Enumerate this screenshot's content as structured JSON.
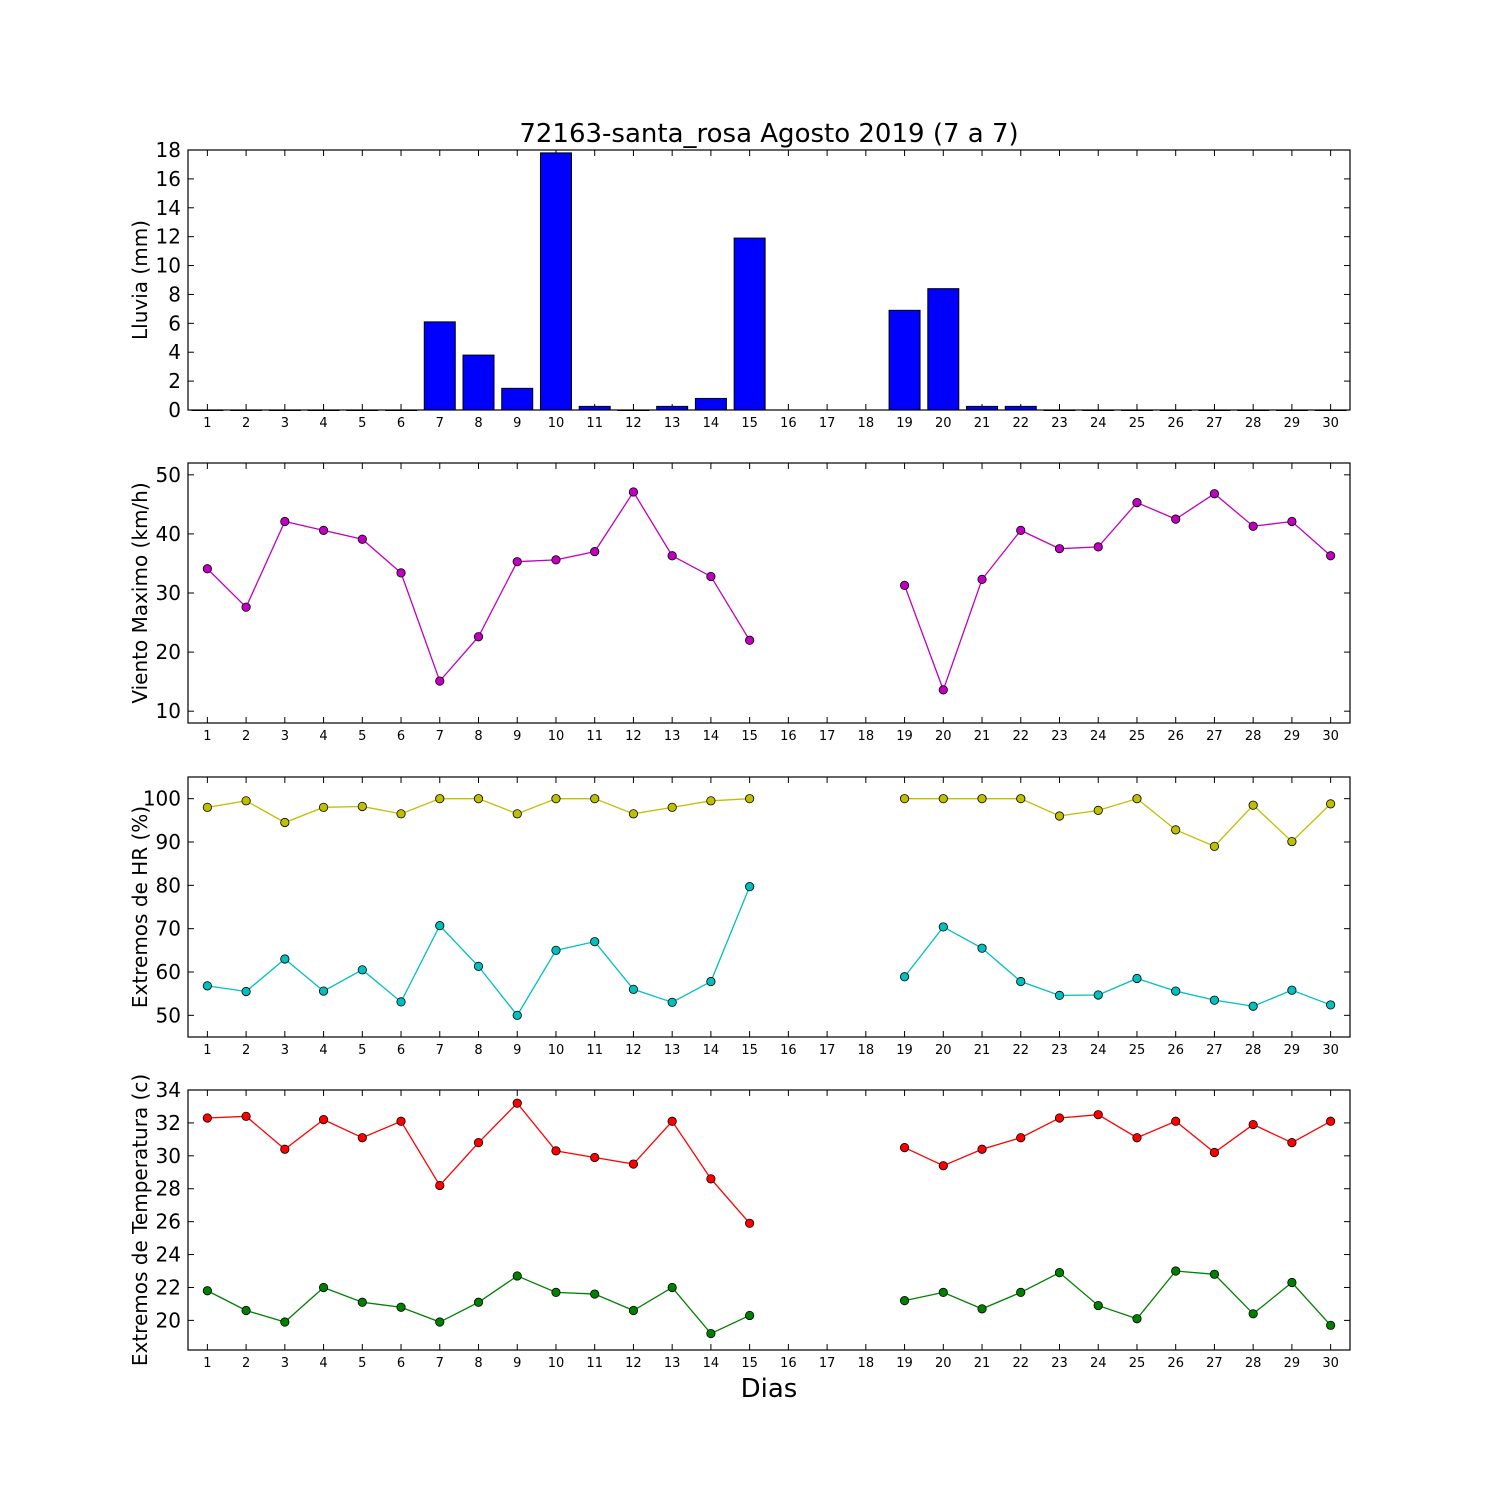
{
  "title": "72163-santa_rosa Agosto 2019  (7 a 7)",
  "xlabel": "Dias",
  "chart_data": [
    {
      "type": "bar",
      "ylabel": "Lluvia (mm)",
      "ylim": [
        0,
        18
      ],
      "yticks": [
        0,
        2,
        4,
        6,
        8,
        10,
        12,
        14,
        16,
        18
      ],
      "categories": [
        "1",
        "2",
        "3",
        "4",
        "5",
        "6",
        "7",
        "8",
        "9",
        "10",
        "11",
        "12",
        "13",
        "14",
        "15",
        "16",
        "17",
        "18",
        "19",
        "20",
        "21",
        "22",
        "23",
        "24",
        "25",
        "26",
        "27",
        "28",
        "29",
        "30"
      ],
      "series": [
        {
          "color": "#0000ff",
          "values": [
            0,
            0,
            0,
            0,
            0,
            0,
            6.1,
            3.8,
            1.5,
            17.8,
            0.25,
            0,
            0.25,
            0.8,
            11.9,
            null,
            null,
            null,
            6.9,
            8.4,
            0.25,
            0.25,
            0,
            0,
            0,
            0,
            0,
            0,
            0,
            0
          ]
        }
      ]
    },
    {
      "type": "line",
      "ylabel": "Viento Maximo (km/h)",
      "ylim": [
        8,
        52
      ],
      "yticks": [
        10,
        20,
        30,
        40,
        50
      ],
      "categories": [
        "1",
        "2",
        "3",
        "4",
        "5",
        "6",
        "7",
        "8",
        "9",
        "10",
        "11",
        "12",
        "13",
        "14",
        "15",
        "16",
        "17",
        "18",
        "19",
        "20",
        "21",
        "22",
        "23",
        "24",
        "25",
        "26",
        "27",
        "28",
        "29",
        "30"
      ],
      "series": [
        {
          "color": "#bf00bf",
          "values": [
            34.1,
            27.6,
            42.1,
            40.6,
            39.1,
            33.4,
            15.1,
            22.6,
            35.3,
            35.6,
            37.0,
            47.1,
            36.3,
            32.8,
            22.0,
            null,
            null,
            null,
            31.3,
            13.6,
            32.3,
            40.6,
            37.5,
            37.8,
            45.3,
            42.5,
            46.8,
            41.3,
            42.1,
            36.3
          ]
        }
      ]
    },
    {
      "type": "line",
      "ylabel": "Extremos de HR (%)",
      "ylim": [
        45,
        105
      ],
      "yticks": [
        50,
        60,
        70,
        80,
        90,
        100
      ],
      "categories": [
        "1",
        "2",
        "3",
        "4",
        "5",
        "6",
        "7",
        "8",
        "9",
        "10",
        "11",
        "12",
        "13",
        "14",
        "15",
        "16",
        "17",
        "18",
        "19",
        "20",
        "21",
        "22",
        "23",
        "24",
        "25",
        "26",
        "27",
        "28",
        "29",
        "30"
      ],
      "series": [
        {
          "color": "#bfbf00",
          "values": [
            98,
            99.5,
            94.5,
            98,
            98.2,
            96.5,
            100,
            100,
            96.5,
            100,
            100,
            96.5,
            98,
            99.5,
            100,
            null,
            null,
            null,
            100,
            100,
            100,
            100,
            96,
            97.3,
            100,
            92.8,
            89,
            98.5,
            90.1,
            98.8
          ]
        },
        {
          "color": "#00bfbf",
          "values": [
            56.8,
            55.5,
            63,
            55.6,
            60.5,
            53.1,
            70.7,
            61.3,
            50,
            65,
            67,
            56,
            53,
            57.8,
            79.7,
            null,
            null,
            null,
            58.9,
            70.4,
            65.5,
            57.8,
            54.6,
            54.7,
            58.5,
            55.6,
            53.5,
            52.1,
            55.8,
            52.4
          ]
        }
      ]
    },
    {
      "type": "line",
      "ylabel": "Extremos de Temperatura (c)",
      "ylim": [
        18.2,
        34
      ],
      "yticks": [
        20,
        22,
        24,
        26,
        28,
        30,
        32,
        34
      ],
      "categories": [
        "1",
        "2",
        "3",
        "4",
        "5",
        "6",
        "7",
        "8",
        "9",
        "10",
        "11",
        "12",
        "13",
        "14",
        "15",
        "16",
        "17",
        "18",
        "19",
        "20",
        "21",
        "22",
        "23",
        "24",
        "25",
        "26",
        "27",
        "28",
        "29",
        "30"
      ],
      "series": [
        {
          "color": "#ff0000",
          "values": [
            32.3,
            32.4,
            30.4,
            32.2,
            31.1,
            32.1,
            28.2,
            30.8,
            33.2,
            30.3,
            29.9,
            29.5,
            32.1,
            28.6,
            25.9,
            null,
            null,
            null,
            30.5,
            29.4,
            30.4,
            31.1,
            32.3,
            32.5,
            31.1,
            32.1,
            30.2,
            31.9,
            30.8,
            32.1
          ]
        },
        {
          "color": "#008000",
          "values": [
            21.8,
            20.6,
            19.9,
            22.0,
            21.1,
            20.8,
            19.9,
            21.1,
            22.7,
            21.7,
            21.6,
            20.6,
            22.0,
            19.2,
            20.3,
            null,
            null,
            null,
            21.2,
            21.7,
            20.7,
            21.7,
            22.9,
            20.9,
            20.1,
            23.0,
            22.8,
            20.4,
            22.3,
            19.7
          ]
        }
      ]
    }
  ]
}
